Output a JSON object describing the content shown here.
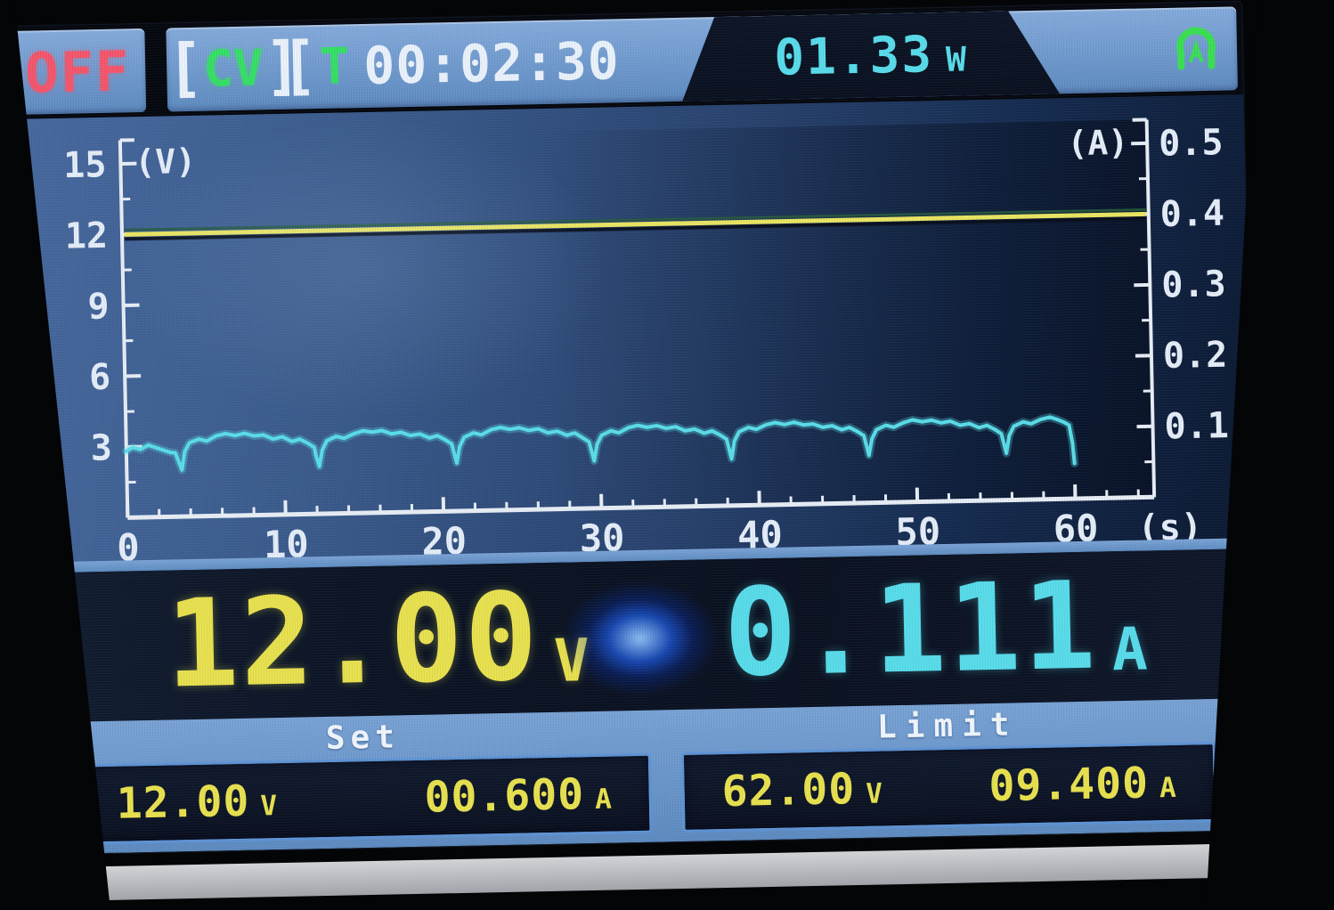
{
  "status_bar": {
    "output_state": "OFF",
    "mode": "CV",
    "timer_prefix": "T",
    "timer": "00:02:30",
    "power_value": "01.33",
    "power_unit": "W"
  },
  "readout": {
    "voltage_value": "12.00",
    "voltage_unit": "V",
    "current_value": "0.111",
    "current_unit": "A"
  },
  "panels": {
    "set": {
      "title": "Set",
      "voltage": "12.00",
      "voltage_unit": "V",
      "current": "00.600",
      "current_unit": "A"
    },
    "limit": {
      "title": "Limit",
      "voltage": "62.00",
      "voltage_unit": "V",
      "current": "09.400",
      "current_unit": "A"
    }
  },
  "colors": {
    "off_red": "#f4566c",
    "mode_green": "#35e065",
    "icon_green": "#3ae052",
    "value_yellow": "#e8e14f",
    "value_cyan": "#58dcea",
    "axis_white": "#e8eef6",
    "bar_blue": "#6f9ed4"
  },
  "chart_data": {
    "type": "line",
    "title": "",
    "x_axis": {
      "label": "(s)",
      "range": [
        0,
        65
      ],
      "major_ticks": [
        0,
        10,
        20,
        30,
        40,
        50,
        60
      ],
      "minor_step": 2
    },
    "y_left_axis": {
      "label": "(V)",
      "range": [
        0,
        16
      ],
      "major_ticks": [
        3,
        6,
        9,
        12,
        15
      ],
      "minor_ticks": [
        1.5,
        4.5,
        7.5,
        10.5,
        13.5
      ]
    },
    "y_right_axis": {
      "label": "(A)",
      "range": [
        0,
        0.533
      ],
      "major_ticks": [
        0.1,
        0.2,
        0.3,
        0.4,
        0.5
      ],
      "minor_ticks": [
        0.05,
        0.15,
        0.25,
        0.35,
        0.45
      ],
      "amp_to_volt": 30
    },
    "grid": false,
    "legend": "none",
    "series": [
      {
        "name": "voltage",
        "unit": "V",
        "color": "#e9e662",
        "points": [
          [
            0,
            12
          ],
          [
            65,
            12
          ]
        ]
      },
      {
        "name": "current",
        "unit": "A",
        "color": "#5adde9",
        "points": [
          [
            0,
            0.094
          ],
          [
            0.4,
            0.099
          ],
          [
            0.9,
            0.096
          ],
          [
            1.4,
            0.102
          ],
          [
            1.9,
            0.098
          ],
          [
            2.4,
            0.094
          ],
          [
            2.8,
            0.091
          ],
          [
            3.1,
            0.09
          ],
          [
            3.3,
            0.078
          ],
          [
            3.5,
            0.066
          ],
          [
            3.7,
            0.092
          ],
          [
            4.0,
            0.104
          ],
          [
            4.6,
            0.109
          ],
          [
            5.1,
            0.106
          ],
          [
            5.7,
            0.113
          ],
          [
            6.3,
            0.116
          ],
          [
            6.9,
            0.113
          ],
          [
            7.5,
            0.116
          ],
          [
            8.1,
            0.112
          ],
          [
            8.7,
            0.113
          ],
          [
            9.3,
            0.107
          ],
          [
            9.9,
            0.11
          ],
          [
            10.5,
            0.103
          ],
          [
            11.0,
            0.106
          ],
          [
            11.5,
            0.1
          ],
          [
            11.9,
            0.094
          ],
          [
            12.0,
            0.082
          ],
          [
            12.2,
            0.067
          ],
          [
            12.4,
            0.09
          ],
          [
            12.7,
            0.103
          ],
          [
            13.3,
            0.109
          ],
          [
            13.8,
            0.106
          ],
          [
            14.4,
            0.112
          ],
          [
            15.0,
            0.116
          ],
          [
            15.6,
            0.114
          ],
          [
            16.2,
            0.116
          ],
          [
            16.8,
            0.111
          ],
          [
            17.4,
            0.113
          ],
          [
            18.0,
            0.108
          ],
          [
            18.6,
            0.11
          ],
          [
            19.2,
            0.104
          ],
          [
            19.7,
            0.107
          ],
          [
            20.2,
            0.101
          ],
          [
            20.6,
            0.095
          ],
          [
            20.9,
            0.068
          ],
          [
            21.1,
            0.091
          ],
          [
            21.4,
            0.104
          ],
          [
            22.0,
            0.11
          ],
          [
            22.5,
            0.107
          ],
          [
            23.1,
            0.114
          ],
          [
            23.7,
            0.117
          ],
          [
            24.3,
            0.114
          ],
          [
            24.9,
            0.116
          ],
          [
            25.5,
            0.112
          ],
          [
            26.1,
            0.114
          ],
          [
            26.7,
            0.108
          ],
          [
            27.3,
            0.11
          ],
          [
            27.9,
            0.104
          ],
          [
            28.4,
            0.107
          ],
          [
            28.9,
            0.1
          ],
          [
            29.3,
            0.094
          ],
          [
            29.6,
            0.067
          ],
          [
            29.8,
            0.09
          ],
          [
            30.1,
            0.103
          ],
          [
            30.7,
            0.109
          ],
          [
            31.2,
            0.106
          ],
          [
            31.8,
            0.113
          ],
          [
            32.4,
            0.116
          ],
          [
            33.0,
            0.113
          ],
          [
            33.6,
            0.115
          ],
          [
            34.2,
            0.111
          ],
          [
            34.8,
            0.113
          ],
          [
            35.4,
            0.107
          ],
          [
            36.0,
            0.109
          ],
          [
            36.6,
            0.103
          ],
          [
            37.1,
            0.106
          ],
          [
            37.6,
            0.1
          ],
          [
            38.0,
            0.094
          ],
          [
            38.3,
            0.066
          ],
          [
            38.5,
            0.091
          ],
          [
            38.8,
            0.104
          ],
          [
            39.4,
            0.11
          ],
          [
            39.9,
            0.107
          ],
          [
            40.5,
            0.113
          ],
          [
            41.1,
            0.116
          ],
          [
            41.7,
            0.113
          ],
          [
            42.3,
            0.116
          ],
          [
            42.9,
            0.112
          ],
          [
            43.5,
            0.113
          ],
          [
            44.1,
            0.108
          ],
          [
            44.7,
            0.11
          ],
          [
            45.3,
            0.104
          ],
          [
            45.8,
            0.107
          ],
          [
            46.3,
            0.101
          ],
          [
            46.7,
            0.095
          ],
          [
            47.0,
            0.067
          ],
          [
            47.2,
            0.09
          ],
          [
            47.5,
            0.103
          ],
          [
            48.1,
            0.109
          ],
          [
            48.6,
            0.106
          ],
          [
            49.2,
            0.112
          ],
          [
            49.8,
            0.116
          ],
          [
            50.4,
            0.113
          ],
          [
            51.0,
            0.115
          ],
          [
            51.6,
            0.111
          ],
          [
            52.2,
            0.113
          ],
          [
            52.8,
            0.107
          ],
          [
            53.4,
            0.109
          ],
          [
            54.0,
            0.103
          ],
          [
            54.5,
            0.106
          ],
          [
            55.0,
            0.1
          ],
          [
            55.4,
            0.094
          ],
          [
            55.7,
            0.066
          ],
          [
            55.9,
            0.091
          ],
          [
            56.2,
            0.104
          ],
          [
            56.8,
            0.11
          ],
          [
            57.3,
            0.107
          ],
          [
            57.9,
            0.113
          ],
          [
            58.5,
            0.116
          ],
          [
            59.0,
            0.112
          ],
          [
            59.4,
            0.108
          ],
          [
            59.7,
            0.104
          ],
          [
            59.9,
            0.078
          ],
          [
            60.0,
            0.05
          ]
        ]
      }
    ]
  }
}
